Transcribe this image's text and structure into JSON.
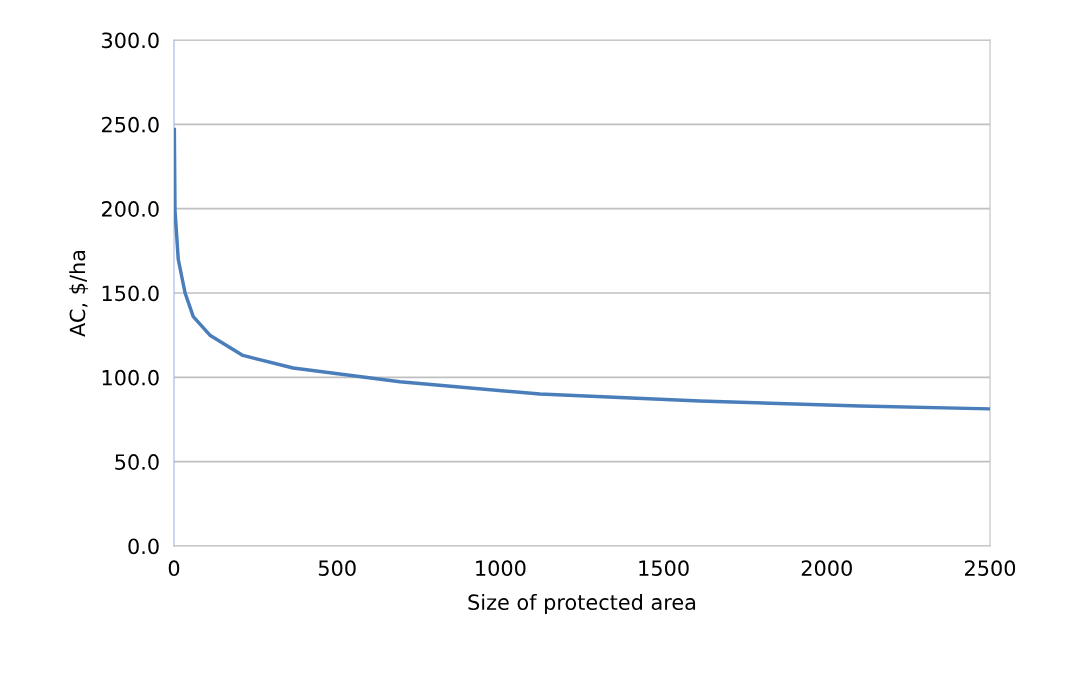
{
  "chart_data": {
    "type": "line",
    "xlabel": "Size of protected area",
    "ylabel": "AC, $/ha",
    "series": [
      {
        "color": "#4a7ebb",
        "x": [
          1,
          3,
          13,
          34,
          59,
          110,
          211,
          365,
          692,
          1121,
          1611,
          2102,
          2500
        ],
        "values": [
          247,
          199,
          170,
          150,
          136,
          125,
          113,
          105.5,
          97.4,
          90.1,
          86,
          83,
          81.3
        ]
      }
    ],
    "xlim": [
      0,
      2500
    ],
    "xticks": [
      0,
      500,
      1000,
      1500,
      2000,
      2500
    ],
    "ylim": [
      0,
      300
    ],
    "yticks": [
      {
        "value": 0,
        "label": "0.0"
      },
      {
        "value": 50,
        "label": "50.0"
      },
      {
        "value": 100,
        "label": "100.0"
      },
      {
        "value": 150,
        "label": "150.0"
      },
      {
        "value": 200,
        "label": "200.0"
      },
      {
        "value": 250,
        "label": "250.0"
      },
      {
        "value": 300,
        "label": "300.0"
      }
    ],
    "grid": "y",
    "marker": "none",
    "line_style": "solid"
  }
}
